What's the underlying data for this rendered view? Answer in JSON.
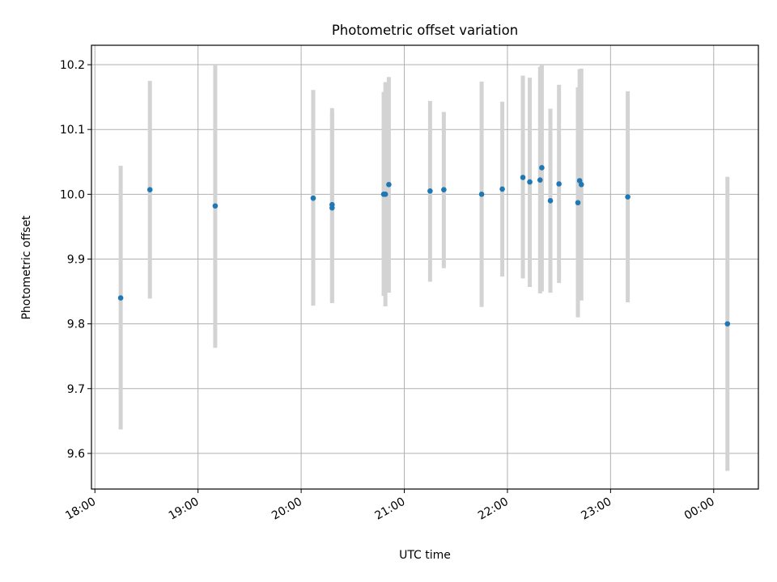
{
  "chart_data": {
    "type": "scatter",
    "title": "Photometric offset variation",
    "xlabel": "UTC time",
    "ylabel": "Photometric offset",
    "grid": true,
    "x_axis_type": "time",
    "xlim": [
      "17:58",
      "00:26"
    ],
    "ylim": [
      9.545,
      10.23
    ],
    "x_ticks": [
      "18:00",
      "19:00",
      "20:00",
      "21:00",
      "22:00",
      "23:00",
      "00:00"
    ],
    "y_ticks": [
      9.6,
      9.7,
      9.8,
      9.9,
      10.0,
      10.1,
      10.2
    ],
    "y_tick_labels": [
      "9.6",
      "9.7",
      "9.8",
      "9.9",
      "10.0",
      "10.1",
      "10.2"
    ],
    "colors": {
      "point": "#1f77b4",
      "errorbar": "#d3d3d3",
      "grid": "#b0b0b0"
    },
    "series": [
      {
        "points": [
          {
            "x": "18:15",
            "y": 9.84,
            "y_low": 9.637,
            "y_high": 10.044
          },
          {
            "x": "18:32",
            "y": 10.007,
            "y_low": 9.839,
            "y_high": 10.175
          },
          {
            "x": "19:10",
            "y": 9.982,
            "y_low": 9.763,
            "y_high": 10.199
          },
          {
            "x": "20:07",
            "y": 9.994,
            "y_low": 9.828,
            "y_high": 10.161
          },
          {
            "x": "20:18",
            "y": 9.984,
            "y_low": 9.834,
            "y_high": 10.133
          },
          {
            "x": "20:18",
            "y": 9.979,
            "y_low": 9.832,
            "y_high": 10.126
          },
          {
            "x": "20:48",
            "y": 10.0,
            "y_low": 9.843,
            "y_high": 10.158
          },
          {
            "x": "20:49",
            "y": 10.0,
            "y_low": 9.827,
            "y_high": 10.173
          },
          {
            "x": "20:51",
            "y": 10.015,
            "y_low": 9.848,
            "y_high": 10.181
          },
          {
            "x": "21:15",
            "y": 10.005,
            "y_low": 9.865,
            "y_high": 10.144
          },
          {
            "x": "21:23",
            "y": 10.007,
            "y_low": 9.886,
            "y_high": 10.127
          },
          {
            "x": "21:45",
            "y": 10.0,
            "y_low": 9.826,
            "y_high": 10.174
          },
          {
            "x": "21:57",
            "y": 10.008,
            "y_low": 9.873,
            "y_high": 10.143
          },
          {
            "x": "22:09",
            "y": 10.026,
            "y_low": 9.87,
            "y_high": 10.183
          },
          {
            "x": "22:13",
            "y": 10.019,
            "y_low": 9.857,
            "y_high": 10.18
          },
          {
            "x": "22:19",
            "y": 10.022,
            "y_low": 9.847,
            "y_high": 10.197
          },
          {
            "x": "22:20",
            "y": 10.041,
            "y_low": 9.85,
            "y_high": 10.199
          },
          {
            "x": "22:25",
            "y": 9.99,
            "y_low": 9.848,
            "y_high": 10.132
          },
          {
            "x": "22:30",
            "y": 10.016,
            "y_low": 9.863,
            "y_high": 10.169
          },
          {
            "x": "22:41",
            "y": 9.987,
            "y_low": 9.81,
            "y_high": 10.165
          },
          {
            "x": "22:42",
            "y": 10.021,
            "y_low": 9.849,
            "y_high": 10.193
          },
          {
            "x": "22:43",
            "y": 10.015,
            "y_low": 9.836,
            "y_high": 10.194
          },
          {
            "x": "23:10",
            "y": 9.996,
            "y_low": 9.833,
            "y_high": 10.159
          },
          {
            "x": "00:08",
            "y": 9.8,
            "y_low": 9.573,
            "y_high": 10.027
          }
        ]
      }
    ]
  }
}
